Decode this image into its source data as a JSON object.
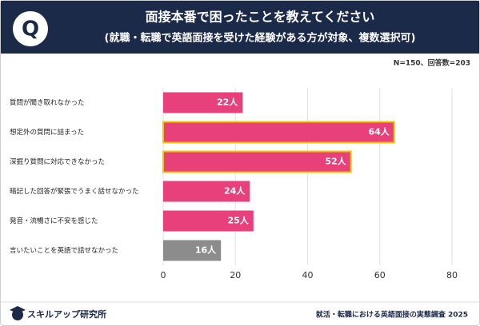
{
  "header": {
    "badge": "Q"
  },
  "chart_data": {
    "type": "barh",
    "title": "面接本番で困ったことを教えてください",
    "subtitle": "(就職・転職で英語面接を受けた経験がある方が対象、複数選択可)",
    "note": "N=150、回答数=203",
    "categories": [
      "質問が聞き取れなかった",
      "想定外の質問に詰まった",
      "深掘り質問に対応できなかった",
      "暗記した回答が緊張でうまく話せなかった",
      "発音・流暢さに不安を感じた",
      "言いたいことを英語で話せなかった"
    ],
    "values": [
      22,
      64,
      52,
      24,
      25,
      16
    ],
    "value_labels": [
      "22人",
      "64人",
      "52人",
      "24人",
      "25人",
      "16人"
    ],
    "colors": [
      "#e8407a",
      "#e8407a",
      "#e8407a",
      "#e8407a",
      "#e8407a",
      "#8c8c8c"
    ],
    "highlighted": [
      false,
      true,
      true,
      false,
      false,
      false
    ],
    "highlight_color": "#f5c400",
    "xlim": [
      0,
      80
    ],
    "xticks": [
      0,
      20,
      40,
      60,
      80
    ],
    "grid": true
  },
  "footer": {
    "brand": "スキルアップ研究所",
    "source": "就活・転職における英語面接の実態調査 2025"
  }
}
